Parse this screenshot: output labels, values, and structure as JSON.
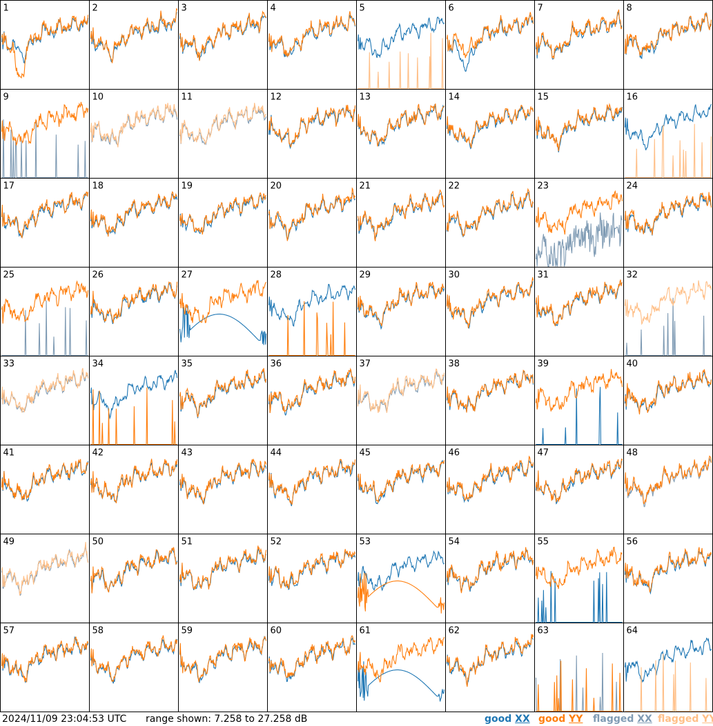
{
  "timestamp": "2024/11/09 23:04:53 UTC",
  "range_label": "range shown: 7.258 to 27.258 dB",
  "legend": [
    {
      "word": "good",
      "pol": "XX",
      "color": "#1f77b4"
    },
    {
      "word": "good",
      "pol": "YY",
      "color": "#ff7f0e"
    },
    {
      "word": "flagged",
      "pol": "XX",
      "color": "#7f9bb4"
    },
    {
      "word": "flagged",
      "pol": "YY",
      "color": "#ffbf87"
    }
  ],
  "chart_data": {
    "type": "line",
    "grid": "8x8",
    "ylim": [
      7.258,
      27.258
    ],
    "y_unit": "dB",
    "panels": [
      {
        "label": "1",
        "xx": "good",
        "yy": "good",
        "note": "yy_dip_start"
      },
      {
        "label": "2",
        "xx": "good",
        "yy": "good"
      },
      {
        "label": "3",
        "xx": "good",
        "yy": "good"
      },
      {
        "label": "4",
        "xx": "good",
        "yy": "good"
      },
      {
        "label": "5",
        "xx": "good",
        "yy": "flagged",
        "note": "yy_spikes"
      },
      {
        "label": "6",
        "xx": "good",
        "yy": "good",
        "note": "xx_low_dip"
      },
      {
        "label": "7",
        "xx": "good",
        "yy": "good"
      },
      {
        "label": "8",
        "xx": "good",
        "yy": "good"
      },
      {
        "label": "9",
        "xx": "flagged",
        "yy": "good",
        "note": "xx_spikes"
      },
      {
        "label": "10",
        "xx": "flagged",
        "yy": "flagged"
      },
      {
        "label": "11",
        "xx": "flagged",
        "yy": "flagged"
      },
      {
        "label": "12",
        "xx": "good",
        "yy": "good"
      },
      {
        "label": "13",
        "xx": "good",
        "yy": "good"
      },
      {
        "label": "14",
        "xx": "good",
        "yy": "good"
      },
      {
        "label": "15",
        "xx": "good",
        "yy": "good"
      },
      {
        "label": "16",
        "xx": "good",
        "yy": "flagged",
        "note": "yy_spikes"
      },
      {
        "label": "17",
        "xx": "good",
        "yy": "good"
      },
      {
        "label": "18",
        "xx": "good",
        "yy": "good"
      },
      {
        "label": "19",
        "xx": "good",
        "yy": "good"
      },
      {
        "label": "20",
        "xx": "good",
        "yy": "good"
      },
      {
        "label": "21",
        "xx": "good",
        "yy": "good"
      },
      {
        "label": "22",
        "xx": "good",
        "yy": "good"
      },
      {
        "label": "23",
        "xx": "flagged",
        "yy": "good",
        "note": "xx_noisy"
      },
      {
        "label": "24",
        "xx": "good",
        "yy": "good"
      },
      {
        "label": "25",
        "xx": "flagged",
        "yy": "good",
        "note": "xx_spikes"
      },
      {
        "label": "26",
        "xx": "good",
        "yy": "good"
      },
      {
        "label": "27",
        "xx": "good",
        "yy": "good",
        "note": "xx_bump"
      },
      {
        "label": "28",
        "xx": "good",
        "yy": "good",
        "note": "yy_spikes"
      },
      {
        "label": "29",
        "xx": "good",
        "yy": "good"
      },
      {
        "label": "30",
        "xx": "good",
        "yy": "good"
      },
      {
        "label": "31",
        "xx": "good",
        "yy": "good"
      },
      {
        "label": "32",
        "xx": "flagged",
        "yy": "flagged",
        "note": "xx_spikes"
      },
      {
        "label": "33",
        "xx": "flagged",
        "yy": "flagged"
      },
      {
        "label": "34",
        "xx": "good",
        "yy": "good",
        "note": "yy_spikes"
      },
      {
        "label": "35",
        "xx": "good",
        "yy": "good"
      },
      {
        "label": "36",
        "xx": "good",
        "yy": "good"
      },
      {
        "label": "37",
        "xx": "flagged",
        "yy": "flagged"
      },
      {
        "label": "38",
        "xx": "good",
        "yy": "good"
      },
      {
        "label": "39",
        "xx": "good",
        "yy": "good",
        "note": "xx_spikes"
      },
      {
        "label": "40",
        "xx": "good",
        "yy": "good"
      },
      {
        "label": "41",
        "xx": "good",
        "yy": "good"
      },
      {
        "label": "42",
        "xx": "good",
        "yy": "good"
      },
      {
        "label": "43",
        "xx": "good",
        "yy": "good"
      },
      {
        "label": "44",
        "xx": "good",
        "yy": "good"
      },
      {
        "label": "45",
        "xx": "good",
        "yy": "good"
      },
      {
        "label": "46",
        "xx": "good",
        "yy": "good"
      },
      {
        "label": "47",
        "xx": "good",
        "yy": "good"
      },
      {
        "label": "48",
        "xx": "flagged",
        "yy": "good"
      },
      {
        "label": "49",
        "xx": "flagged",
        "yy": "flagged"
      },
      {
        "label": "50",
        "xx": "good",
        "yy": "good"
      },
      {
        "label": "51",
        "xx": "good",
        "yy": "good"
      },
      {
        "label": "52",
        "xx": "good",
        "yy": "good"
      },
      {
        "label": "53",
        "xx": "good",
        "yy": "good",
        "note": "yy_bump"
      },
      {
        "label": "54",
        "xx": "good",
        "yy": "good"
      },
      {
        "label": "55",
        "xx": "good",
        "yy": "good",
        "note": "xx_spikes"
      },
      {
        "label": "56",
        "xx": "good",
        "yy": "good"
      },
      {
        "label": "57",
        "xx": "good",
        "yy": "good"
      },
      {
        "label": "58",
        "xx": "good",
        "yy": "good"
      },
      {
        "label": "59",
        "xx": "good",
        "yy": "good"
      },
      {
        "label": "60",
        "xx": "good",
        "yy": "good"
      },
      {
        "label": "61",
        "xx": "good",
        "yy": "good",
        "note": "xx_bump"
      },
      {
        "label": "62",
        "xx": "good",
        "yy": "good"
      },
      {
        "label": "63",
        "xx": "flagged",
        "yy": "good",
        "note": "both_spikes"
      },
      {
        "label": "64",
        "xx": "good",
        "yy": "flagged",
        "note": "yy_spikes"
      }
    ]
  }
}
